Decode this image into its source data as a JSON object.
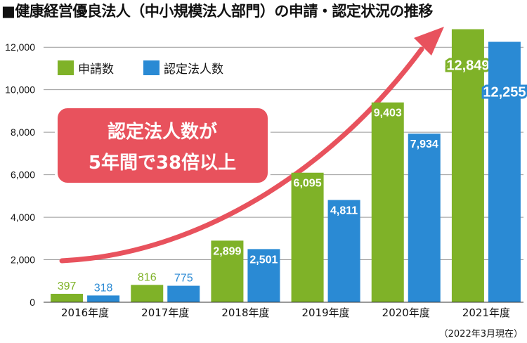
{
  "title": "■健康経営優良法人（中小規模法人部門）の申請・認定状況の推移",
  "note": "（2022年3月現在）",
  "callout": {
    "line1": "認定法人数が",
    "line2": "5年間で38倍以上"
  },
  "colors": {
    "applications": "#7fb228",
    "certified": "#2a8ad4",
    "callout": "#e8525d",
    "grid": "#999999"
  },
  "chart_data": {
    "type": "bar",
    "categories": [
      "2016年度",
      "2017年度",
      "2018年度",
      "2019年度",
      "2020年度",
      "2021年度"
    ],
    "series": [
      {
        "name": "申請数",
        "values": [
          397,
          816,
          2899,
          6095,
          9403,
          12849
        ],
        "labels": [
          "397",
          "816",
          "2,899",
          "6,095",
          "9,403",
          "12,849"
        ]
      },
      {
        "name": "認定法人数",
        "values": [
          318,
          775,
          2501,
          4811,
          7934,
          12255
        ],
        "labels": [
          "318",
          "775",
          "2,501",
          "4,811",
          "7,934",
          "12,255"
        ]
      }
    ],
    "yticks": [
      "0",
      "2,000",
      "4,000",
      "6,000",
      "8,000",
      "10,000",
      "12,000"
    ],
    "ylim": [
      0,
      12900
    ],
    "grid": true,
    "legend": "top-left"
  }
}
